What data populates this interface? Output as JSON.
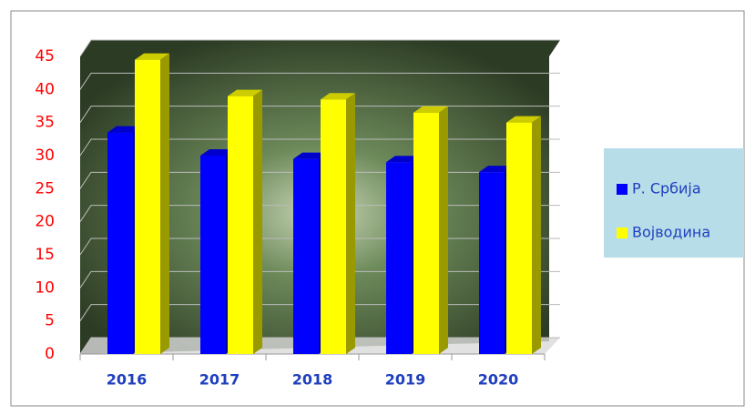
{
  "chart_data": {
    "type": "bar",
    "categories": [
      "2016",
      "2017",
      "2018",
      "2019",
      "2020"
    ],
    "series": [
      {
        "name": "Р. Србија",
        "color": "#0000ff",
        "values": [
          33.5,
          30,
          29.5,
          29,
          27.5
        ]
      },
      {
        "name": "Војводина",
        "color": "#ffff00",
        "values": [
          44.5,
          39,
          38.5,
          36.5,
          35
        ]
      }
    ],
    "ylim": [
      0,
      45
    ],
    "yticks": [
      0,
      5,
      10,
      15,
      20,
      25,
      30,
      35,
      40,
      45
    ],
    "grid": true,
    "legend": "right"
  }
}
